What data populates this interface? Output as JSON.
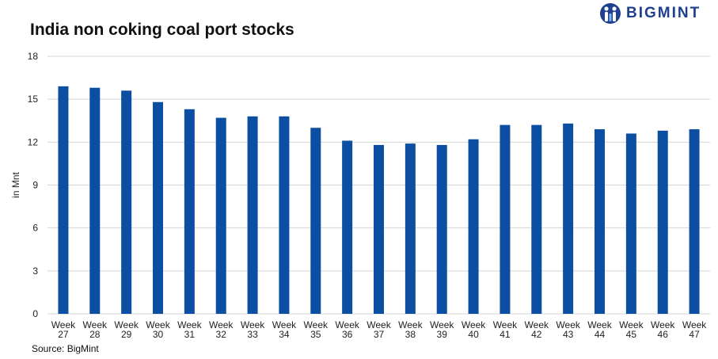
{
  "logo": {
    "text": "BIGMINT",
    "color": "#1f3f8f"
  },
  "source": "Source: BigMint",
  "chart_data": {
    "type": "bar",
    "title": "India non coking coal port stocks",
    "ylabel": "in Mnt",
    "xlabel": "",
    "ylim": [
      0,
      18
    ],
    "yticks": [
      0,
      3,
      6,
      9,
      12,
      15,
      18
    ],
    "grid": true,
    "bar_color": "#0b4ea2",
    "categories": [
      [
        "Week",
        "27"
      ],
      [
        "Week",
        "28"
      ],
      [
        "Week",
        "29"
      ],
      [
        "Week",
        "30"
      ],
      [
        "Week",
        "31"
      ],
      [
        "Week",
        "32"
      ],
      [
        "Week",
        "33"
      ],
      [
        "Week",
        "34"
      ],
      [
        "Week",
        "35"
      ],
      [
        "Week",
        "36"
      ],
      [
        "Week",
        "37"
      ],
      [
        "Week",
        "38"
      ],
      [
        "Week",
        "39"
      ],
      [
        "Week",
        "40"
      ],
      [
        "Week",
        "41"
      ],
      [
        "Week",
        "42"
      ],
      [
        "Week",
        "43"
      ],
      [
        "Week",
        "44"
      ],
      [
        "Week",
        "45"
      ],
      [
        "Week",
        "46"
      ],
      [
        "Week",
        "47"
      ]
    ],
    "values": [
      15.9,
      15.8,
      15.6,
      14.8,
      14.3,
      13.7,
      13.8,
      13.8,
      13.0,
      12.1,
      11.8,
      11.9,
      11.8,
      12.2,
      13.2,
      13.2,
      13.3,
      12.9,
      12.6,
      12.8,
      12.9
    ]
  }
}
